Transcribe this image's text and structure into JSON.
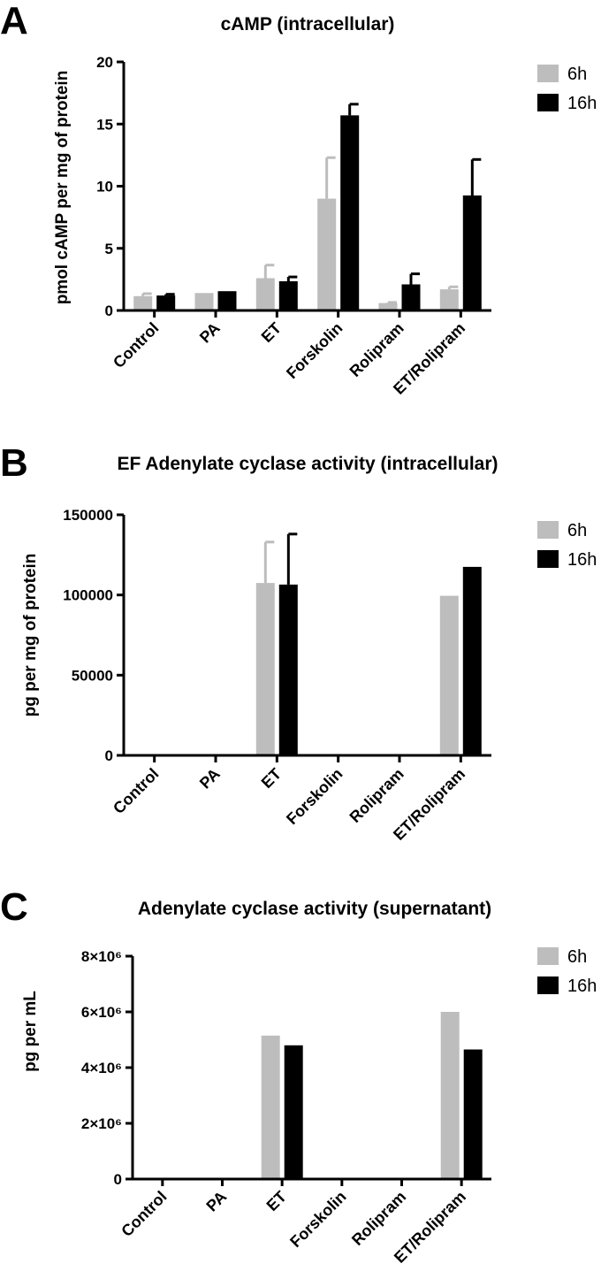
{
  "colors": {
    "6h": "#bdbdbd",
    "16h": "#000000",
    "err_6h": "#bdbdbd",
    "err_16h": "#000000"
  },
  "chart_data": [
    {
      "type": "bar",
      "panel": "A",
      "title": "cAMP (intracellular)",
      "ylabel": "pmol cAMP per mg of protein",
      "xlabel": "",
      "categories": [
        "Control",
        "PA",
        "ET",
        "Forskolin",
        "Rolipram",
        "ET/Rolipram"
      ],
      "ylim": [
        0,
        20
      ],
      "yticks": [
        0,
        5,
        10,
        15,
        20
      ],
      "ytick_labels": [
        "0",
        "5",
        "10",
        "15",
        "20"
      ],
      "legend_position": "top-right",
      "series": [
        {
          "name": "6h",
          "values": [
            1.15,
            1.4,
            2.6,
            9.0,
            0.6,
            1.7
          ],
          "errors": [
            0.2,
            0.0,
            1.05,
            3.3,
            0.05,
            0.2
          ]
        },
        {
          "name": "16h",
          "values": [
            1.2,
            1.55,
            2.35,
            15.7,
            2.1,
            9.25
          ],
          "errors": [
            0.1,
            0.0,
            0.35,
            0.9,
            0.85,
            2.9
          ]
        }
      ]
    },
    {
      "type": "bar",
      "panel": "B",
      "title": "EF Adenylate cyclase activity (intracellular)",
      "ylabel": "pg per mg of protein",
      "xlabel": "",
      "categories": [
        "Control",
        "PA",
        "ET",
        "Forskolin",
        "Rolipram",
        "ET/Rolipram"
      ],
      "ylim": [
        0,
        150000
      ],
      "yticks": [
        0,
        50000,
        100000,
        150000
      ],
      "ytick_labels": [
        "0",
        "50000",
        "100000",
        "150000"
      ],
      "legend_position": "top-right",
      "series": [
        {
          "name": "6h",
          "values": [
            0,
            0,
            107500,
            0,
            0,
            99500
          ],
          "errors": [
            0,
            0,
            25500,
            0,
            0,
            0
          ]
        },
        {
          "name": "16h",
          "values": [
            0,
            0,
            106500,
            0,
            0,
            117500
          ],
          "errors": [
            0,
            0,
            31500,
            0,
            0,
            0
          ]
        }
      ]
    },
    {
      "type": "bar",
      "panel": "C",
      "title": "Adenylate cyclase activity (supernatant)",
      "ylabel": "pg per mL",
      "xlabel": "",
      "categories": [
        "Control",
        "PA",
        "ET",
        "Forskolin",
        "Rolipram",
        "ET/Rolipram"
      ],
      "ylim": [
        0,
        8000000
      ],
      "yticks": [
        0,
        2000000,
        4000000,
        6000000,
        8000000
      ],
      "ytick_labels": [
        "0",
        "2×10⁶",
        "4×10⁶",
        "6×10⁶",
        "8×10⁶"
      ],
      "legend_position": "top-right",
      "series": [
        {
          "name": "6h",
          "values": [
            0,
            0,
            5150000,
            0,
            0,
            6000000
          ],
          "errors": [
            0,
            0,
            0,
            0,
            0,
            0
          ]
        },
        {
          "name": "16h",
          "values": [
            0,
            0,
            4800000,
            0,
            0,
            4650000
          ],
          "errors": [
            0,
            0,
            0,
            0,
            0,
            0
          ]
        }
      ]
    }
  ]
}
